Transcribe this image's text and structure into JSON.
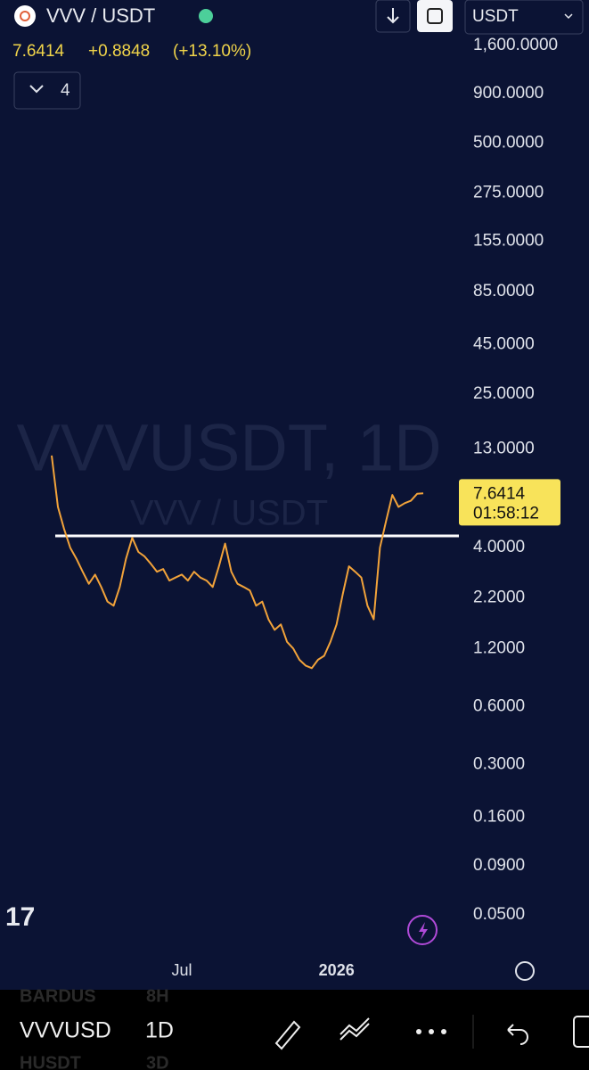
{
  "header": {
    "pair": "VVV / USDT",
    "price": "7.6414",
    "change": "+0.8848",
    "change_pct": "(+13.10%)",
    "indicators": "4",
    "quote": "USDT"
  },
  "chart_data": {
    "type": "line",
    "log_scale": true,
    "color": "#f2a33a",
    "watermark": "VVVUSDT, 1D",
    "watermark_sub": "VVV / USDT",
    "categories": [
      null,
      null,
      null,
      null,
      null,
      null,
      null,
      null,
      null,
      null,
      null,
      null,
      null,
      null,
      null,
      null,
      null,
      null,
      null,
      null,
      null,
      "Jul",
      null,
      null,
      null,
      null,
      null,
      null,
      null,
      null,
      null,
      null,
      null,
      null,
      null,
      null,
      null,
      null,
      null,
      null,
      null,
      null,
      null,
      null,
      null,
      null,
      "2026",
      null,
      null,
      null,
      null,
      null,
      null,
      null,
      null,
      null,
      null,
      null,
      null,
      null,
      null
    ],
    "values": [
      12,
      6.5,
      5.0,
      4.0,
      3.5,
      3.0,
      2.6,
      2.9,
      2.5,
      2.1,
      2.0,
      2.5,
      3.5,
      4.5,
      3.8,
      3.6,
      3.3,
      3.0,
      3.1,
      2.7,
      2.8,
      2.9,
      2.7,
      3.0,
      2.8,
      2.7,
      2.5,
      3.2,
      4.2,
      3.0,
      2.6,
      2.5,
      2.4,
      2.0,
      2.1,
      1.7,
      1.5,
      1.6,
      1.3,
      1.2,
      1.05,
      0.98,
      0.95,
      1.05,
      1.1,
      1.3,
      1.6,
      2.3,
      3.2,
      3.0,
      2.8,
      2.0,
      1.7,
      4.0,
      5.5,
      7.5,
      6.5,
      6.8,
      7.0,
      7.6,
      7.6414
    ],
    "reference_line": 4.6,
    "reference_color": "#ffffff",
    "last_label": "7.6414",
    "countdown": "01:58:12",
    "ylim": [
      0.031,
      2000
    ],
    "yticks": [
      {
        "value": 1600,
        "label": "1,600.0000"
      },
      {
        "value": 900,
        "label": "900.0000"
      },
      {
        "value": 500,
        "label": "500.0000"
      },
      {
        "value": 275,
        "label": "275.0000"
      },
      {
        "value": 155,
        "label": "155.0000"
      },
      {
        "value": 85,
        "label": "85.0000"
      },
      {
        "value": 45,
        "label": "45.0000"
      },
      {
        "value": 25,
        "label": "25.0000"
      },
      {
        "value": 13,
        "label": "13.0000"
      },
      {
        "value": 4,
        "label": "4.0000"
      },
      {
        "value": 2.2,
        "label": "2.2000"
      },
      {
        "value": 1.2,
        "label": "1.2000"
      },
      {
        "value": 0.6,
        "label": "0.6000"
      },
      {
        "value": 0.3,
        "label": "0.3000"
      },
      {
        "value": 0.16,
        "label": "0.1600"
      },
      {
        "value": 0.09,
        "label": "0.0900"
      },
      {
        "value": 0.05,
        "label": "0.0500"
      }
    ]
  },
  "footer": {
    "symbol": "VVVUSD",
    "interval": "1D",
    "ghost_symbol_top": "BARDUS",
    "ghost_interval_top": "8H",
    "ghost_symbol_bottom": "HUSDT",
    "ghost_interval_bottom": "3D"
  }
}
